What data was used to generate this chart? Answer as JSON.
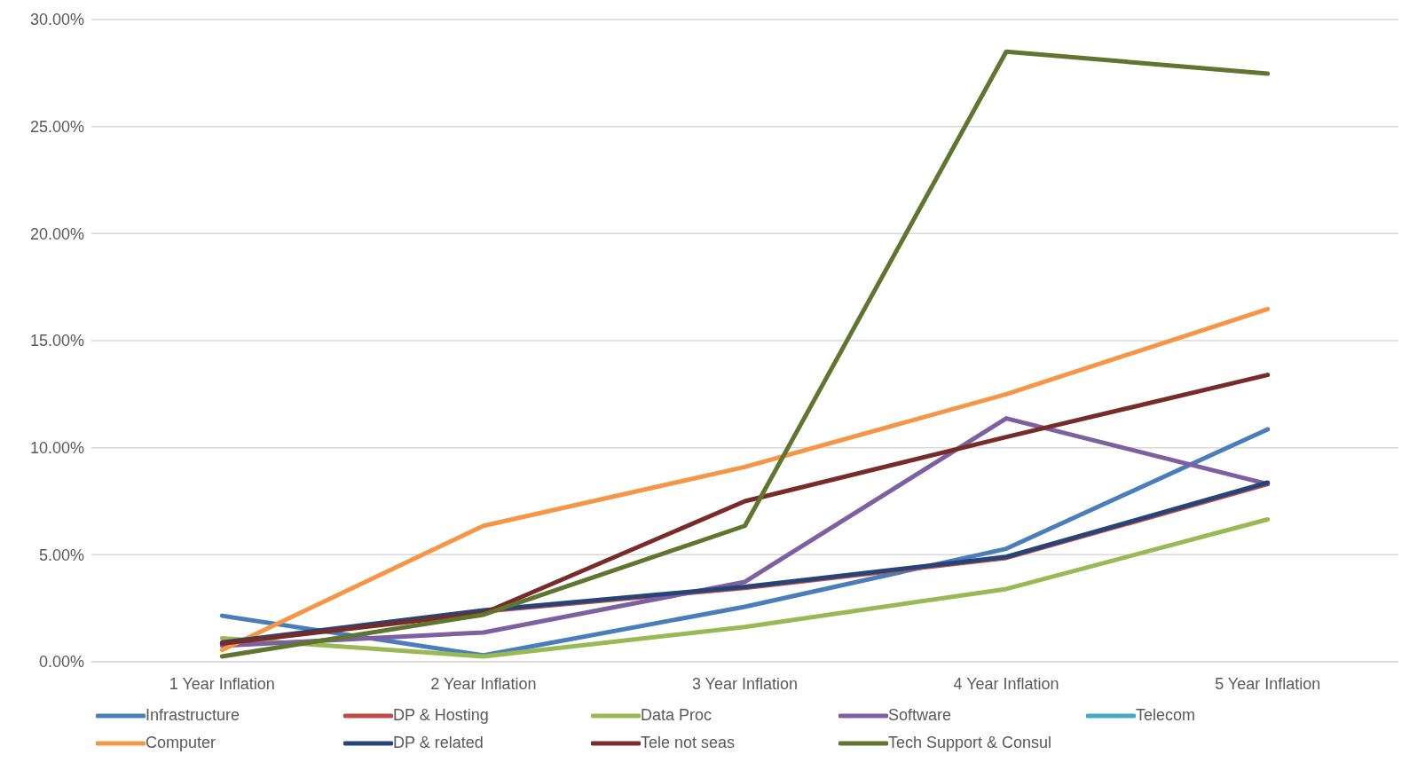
{
  "chart_data": {
    "type": "line",
    "categories": [
      "1 Year Inflation",
      "2 Year Inflation",
      "3 Year Inflation",
      "4 Year Inflation",
      "5 Year Inflation"
    ],
    "ylim": [
      0,
      30
    ],
    "yticks": [
      {
        "value": 0,
        "label": "0.00%"
      },
      {
        "value": 5,
        "label": "5.00%"
      },
      {
        "value": 10,
        "label": "10.00%"
      },
      {
        "value": 15,
        "label": "15.00%"
      },
      {
        "value": 20,
        "label": "20.00%"
      },
      {
        "value": 25,
        "label": "25.00%"
      },
      {
        "value": 30,
        "label": "30.00%"
      }
    ],
    "grid": "y",
    "legend": "bottom",
    "marker": "none",
    "line_style": "solid",
    "series": [
      {
        "name": "Infrastructure",
        "color": "#4a7ebb",
        "values": [
          2.15,
          0.3,
          2.57,
          5.28,
          10.86
        ]
      },
      {
        "name": "DP & Hosting",
        "color": "#be4b48",
        "values": [
          0.85,
          2.35,
          3.45,
          4.85,
          8.3
        ]
      },
      {
        "name": "Data Proc",
        "color": "#98b954",
        "values": [
          1.1,
          0.25,
          1.63,
          3.4,
          6.65
        ]
      },
      {
        "name": "Software",
        "color": "#7d60a0",
        "values": [
          0.75,
          1.37,
          3.73,
          11.37,
          8.3
        ]
      },
      {
        "name": "Telecom",
        "color": "#46aac5",
        "values": [
          null,
          null,
          null,
          null,
          null
        ]
      },
      {
        "name": "Computer",
        "color": "#f69546",
        "values": [
          0.55,
          6.35,
          9.1,
          12.5,
          16.48
        ]
      },
      {
        "name": "DP & related",
        "color": "#264478",
        "values": [
          0.9,
          2.4,
          3.5,
          4.9,
          8.37
        ]
      },
      {
        "name": "Tele not seas",
        "color": "#772c2a",
        "values": [
          0.85,
          2.27,
          7.5,
          10.5,
          13.4
        ]
      },
      {
        "name": "Tech Support & Consul",
        "color": "#5f7530",
        "values": [
          0.25,
          2.2,
          6.35,
          28.5,
          27.47
        ]
      }
    ]
  }
}
